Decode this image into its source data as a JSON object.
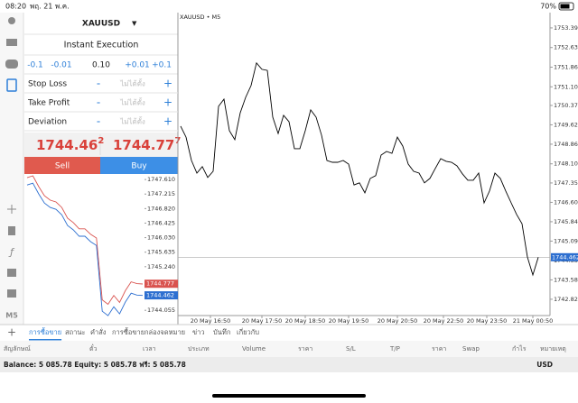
{
  "status_bar": {
    "time": "08:20",
    "date": "พฤ. 21 พ.ค.",
    "battery": "70%"
  },
  "order_panel": {
    "symbol": "XAUUSD",
    "mode": "Instant Execution",
    "volume_steps": [
      "-0.1",
      "-0.01",
      "+0.01",
      "+0.1"
    ],
    "volume": "0.10",
    "minus": "-",
    "plus": "+",
    "fields": [
      {
        "label": "Stop Loss",
        "value": "ไม่ได้ตั้ง"
      },
      {
        "label": "Take Profit",
        "value": "ไม่ได้ตั้ง"
      },
      {
        "label": "Deviation",
        "value": "ไม่ได้ตั้ง"
      }
    ],
    "bid": {
      "main": "1744.46",
      "last": "2"
    },
    "ask": {
      "main": "1744.77",
      "last": "7"
    },
    "sell": "Sell",
    "buy": "Buy"
  },
  "mini_chart": {
    "type": "line",
    "ylim": [
      1743.79,
      1747.76
    ],
    "yticks": [
      {
        "value": 1747.61,
        "label": "1747.610"
      },
      1747.215,
      {
        "value": 1746.82,
        "label": "1746.820"
      },
      1746.425,
      {
        "value": 1746.03,
        "label": "1746.030"
      },
      1745.635,
      {
        "value": 1745.24,
        "label": "1745.240"
      },
      1744.055
    ],
    "series": [
      {
        "color": "#d9534f",
        "values": [
          1747.66,
          1747.71,
          1747.42,
          1747.17,
          1747.05,
          1747.0,
          1746.85,
          1746.56,
          1746.44,
          1746.27,
          1746.27,
          1746.12,
          1746.02,
          1744.34,
          1744.22,
          1744.46,
          1744.27,
          1744.59,
          1744.83,
          1744.78,
          1744.77
        ]
      },
      {
        "color": "#2d6fd0",
        "values": [
          1747.46,
          1747.51,
          1747.22,
          1746.97,
          1746.85,
          1746.8,
          1746.65,
          1746.36,
          1746.24,
          1746.07,
          1746.07,
          1745.92,
          1745.82,
          1744.03,
          1743.91,
          1744.15,
          1743.96,
          1744.28,
          1744.52,
          1744.47,
          1744.46
        ]
      }
    ],
    "ask_price": 1744.777,
    "bid_price": 1744.462
  },
  "chart_data": {
    "type": "line",
    "title": "XAUUSD • M5",
    "xlim": [
      0,
      66
    ],
    "ylim": [
      1742.19,
      1753.99
    ],
    "xticks": [
      {
        "value": 5.5,
        "label": "20 May 16:50"
      },
      {
        "value": 15,
        "label": "20 May 17:50"
      },
      {
        "value": 23,
        "label": "20 May 18:50"
      },
      {
        "value": 31,
        "label": "20 May 19:50"
      },
      {
        "value": 40,
        "label": "20 May 20:50"
      },
      {
        "value": 48.5,
        "label": "20 May 22:50"
      },
      {
        "value": 56.5,
        "label": "20 May 23:50"
      },
      {
        "value": 65,
        "label": "21 May 00:50"
      }
    ],
    "yticks": [
      1753.395,
      {
        "value": 1752.63,
        "label": "1752.630"
      },
      1751.865,
      {
        "value": 1751.1,
        "label": "1751.100"
      },
      1750.375,
      {
        "value": 1749.62,
        "label": "1749.620"
      },
      1748.865,
      {
        "value": 1748.1,
        "label": "1748.100"
      },
      1747.355,
      {
        "value": 1746.6,
        "label": "1746.600"
      },
      1745.845,
      {
        "value": 1745.09,
        "label": "1745.090"
      },
      1744.335,
      {
        "value": 1743.58,
        "label": "1743.580"
      },
      1742.825
    ],
    "series": [
      {
        "color": "#000000",
        "values": [
          1749.57,
          1749.14,
          1748.23,
          1747.74,
          1747.99,
          1747.57,
          1747.81,
          1750.34,
          1750.62,
          1749.39,
          1749.04,
          1750.09,
          1750.69,
          1751.15,
          1752.03,
          1751.78,
          1751.74,
          1749.92,
          1749.28,
          1749.99,
          1749.74,
          1748.69,
          1748.69,
          1749.39,
          1750.2,
          1749.92,
          1749.22,
          1748.23,
          1748.16,
          1748.16,
          1748.23,
          1748.09,
          1747.28,
          1747.36,
          1746.97,
          1747.53,
          1747.64,
          1748.44,
          1748.58,
          1748.51,
          1749.14,
          1748.79,
          1748.09,
          1747.81,
          1747.74,
          1747.36,
          1747.53,
          1747.92,
          1748.3,
          1748.2,
          1748.16,
          1748.02,
          1747.71,
          1747.46,
          1747.46,
          1747.74,
          1746.58,
          1747.04,
          1747.74,
          1747.53,
          1747.04,
          1746.58,
          1746.13,
          1745.77,
          1744.47,
          1743.77,
          1744.46
        ]
      }
    ],
    "current_price": 1744.462,
    "grid": false
  },
  "toolbar_timeframe": "M5",
  "tabs": {
    "plus": "+",
    "items": [
      "การซื้อขาย",
      "สถานะ",
      "คำสั่ง",
      "การซื้อขาย",
      "กล่องจดหมาย",
      "ข่าว",
      "บันทึก",
      "เกี่ยวกับ"
    ],
    "active": 0
  },
  "table_headers": [
    "สัญลักษณ์",
    "ตั๋ว",
    "เวลา",
    "ประเภท",
    "Volume",
    "ราคา",
    "S/L",
    "T/P",
    "ราคา",
    "Swap",
    "กำไร",
    "หมายเหตุ"
  ],
  "balance": "Balance: 5 085.78 Equity: 5 085.78 ฟรี: 5 085.78",
  "currency": "USD"
}
